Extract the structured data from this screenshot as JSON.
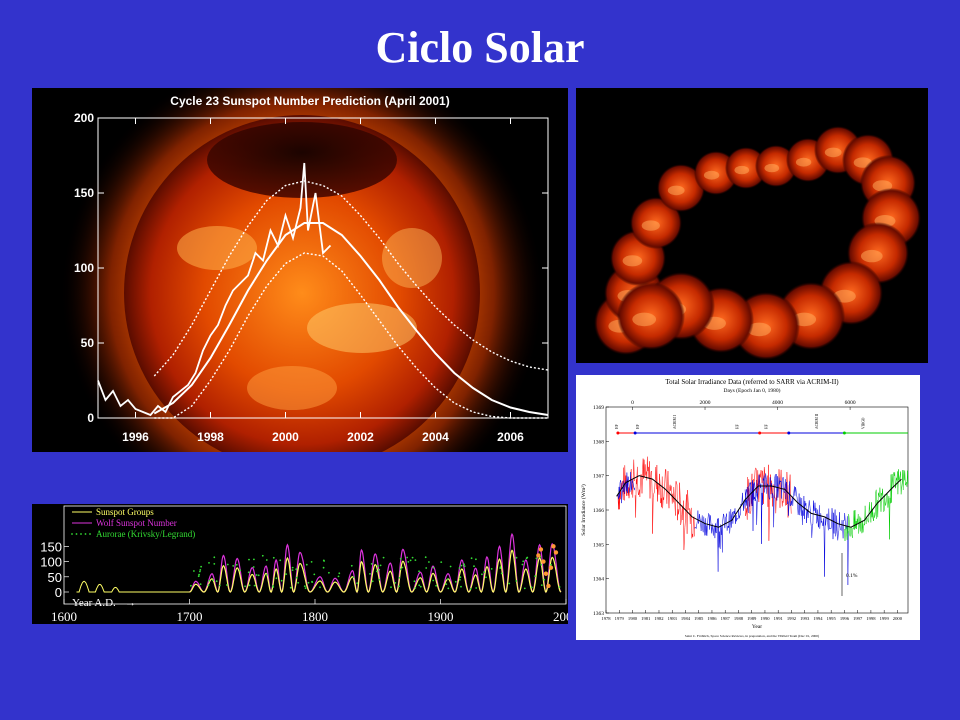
{
  "page": {
    "title": "Ciclo Solar"
  },
  "chart_data": [
    {
      "type": "line",
      "title": "Cycle 23 Sunspot Number Prediction (April 2001)",
      "xlim": [
        1995,
        2007
      ],
      "ylim": [
        0,
        200
      ],
      "x_ticks": [
        "1996",
        "1998",
        "2000",
        "2002",
        "2004",
        "2006"
      ],
      "y_ticks": [
        "0",
        "50",
        "100",
        "150",
        "200"
      ],
      "series": [
        {
          "role": "observed",
          "x": [
            1995.0,
            1995.2,
            1995.4,
            1995.6,
            1995.8,
            1996.0,
            1996.2,
            1996.4,
            1996.6,
            1996.8,
            1997.0,
            1997.2,
            1997.4,
            1997.6,
            1997.8,
            1998.0,
            1998.2,
            1998.4,
            1998.6,
            1998.8,
            1999.0,
            1999.2,
            1999.4,
            1999.6,
            1999.8,
            2000.0,
            2000.2,
            2000.4,
            2000.5,
            2000.6,
            2000.8,
            2001.0,
            2001.2
          ],
          "y": [
            25,
            12,
            18,
            8,
            12,
            6,
            4,
            2,
            8,
            4,
            14,
            18,
            22,
            30,
            45,
            55,
            62,
            75,
            85,
            90,
            95,
            110,
            105,
            125,
            115,
            135,
            120,
            140,
            170,
            125,
            150,
            110,
            115
          ]
        },
        {
          "role": "prediction",
          "x": [
            1996.5,
            1997,
            1997.5,
            1998,
            1998.5,
            1999,
            1999.5,
            2000,
            2000.5,
            2001,
            2001.5,
            2002,
            2002.5,
            2003,
            2003.5,
            2004,
            2004.5,
            2005,
            2005.5,
            2006,
            2006.5,
            2007
          ],
          "y": [
            3,
            10,
            22,
            40,
            62,
            85,
            105,
            122,
            130,
            130,
            122,
            108,
            92,
            74,
            58,
            43,
            30,
            20,
            12,
            7,
            4,
            2
          ]
        },
        {
          "role": "upper-bound",
          "x": [
            1996.5,
            1997,
            1997.5,
            1998,
            1998.5,
            1999,
            1999.5,
            2000,
            2000.5,
            2001,
            2001.5,
            2002,
            2002.5,
            2003,
            2003.5,
            2004,
            2004.5,
            2005,
            2005.5,
            2006,
            2006.5,
            2007
          ],
          "y": [
            28,
            42,
            62,
            85,
            108,
            128,
            145,
            155,
            158,
            155,
            148,
            135,
            120,
            103,
            88,
            74,
            62,
            52,
            44,
            38,
            34,
            32
          ]
        },
        {
          "role": "lower-bound",
          "x": [
            1996.5,
            1997,
            1997.5,
            1998,
            1998.5,
            1999,
            1999.5,
            2000,
            2000.5,
            2001,
            2001.5,
            2002,
            2002.5,
            2003,
            2003.5,
            2004,
            2004.5,
            2005,
            2005.5,
            2006,
            2006.5,
            2007
          ],
          "y": [
            0,
            0,
            8,
            25,
            45,
            68,
            88,
            103,
            110,
            108,
            98,
            82,
            65,
            48,
            33,
            20,
            10,
            4,
            1,
            0,
            0,
            0
          ]
        }
      ]
    },
    {
      "type": "line",
      "title": "Total Solar Irradiance Data (referred to SARR via ACRIM-II)",
      "top_axis_label": "Days (Epoch Jan 0, 1980)",
      "top_ticks": [
        "0",
        "2000",
        "4000",
        "6000"
      ],
      "xlabel": "Year",
      "ylabel": "Solar Irradiance (Wm²)",
      "ylim": [
        1363,
        1369
      ],
      "y_ticks": [
        "1363",
        "1364",
        "1365",
        "1366",
        "1367",
        "1368",
        "1369"
      ],
      "x_ticks": [
        "1978",
        "1979",
        "1980",
        "1981",
        "1982",
        "1983",
        "1984",
        "1985",
        "1986",
        "1987",
        "1988",
        "1989",
        "1990",
        "1991",
        "1992",
        "1993",
        "1994",
        "1995",
        "1996",
        "1997",
        "1998",
        "1999",
        "2000"
      ],
      "instruments": [
        "HF",
        "HF",
        "ACRIM I",
        "HF",
        "HF",
        "ACRIM II",
        "VIRGO"
      ],
      "scale_annotation": "0.1%",
      "credit": "Saint C. Fröhlich, Space Science Reviews, in preparation, and the VIRGO Team (Dec 01, 2000)",
      "colors": {
        "red": "#ff0000",
        "blue": "#0000dd",
        "green": "#00cc00",
        "mean": "#000000"
      },
      "series": [
        {
          "role": "trend",
          "x": [
            1978.8,
            1979.5,
            1980.5,
            1981.5,
            1982.5,
            1983.5,
            1984.5,
            1985.5,
            1986.5,
            1987.5,
            1988.5,
            1989.5,
            1990.5,
            1991.5,
            1992.5,
            1993.5,
            1994.5,
            1995.5,
            1996.5,
            1997.5,
            1998.5,
            1999.5,
            2000.3
          ],
          "y": [
            1366.4,
            1366.8,
            1367.0,
            1366.9,
            1366.6,
            1366.2,
            1365.8,
            1365.6,
            1365.5,
            1365.7,
            1366.3,
            1366.7,
            1366.7,
            1366.6,
            1366.2,
            1365.9,
            1365.8,
            1365.6,
            1365.5,
            1365.7,
            1366.2,
            1366.6,
            1366.9
          ]
        }
      ]
    },
    {
      "type": "line",
      "xlabel": "Year A.D.",
      "xlim": [
        1600,
        2000
      ],
      "ylim": [
        0,
        150
      ],
      "x_ticks": [
        "1600",
        "1700",
        "1800",
        "1900",
        "2000"
      ],
      "y_ticks": [
        "0",
        "50",
        "100",
        "150"
      ],
      "series": [
        {
          "name": "Sunspot Groups",
          "color": "#ffff66"
        },
        {
          "name": "Wolf Sunspot Number",
          "color": "#dd33dd"
        },
        {
          "name": "Aurorae (Krivsky/Legrand)",
          "color": "#33dd33"
        }
      ],
      "cycle_peaks": [
        [
          1705,
          35
        ],
        [
          1718,
          60
        ],
        [
          1727,
          120
        ],
        [
          1738,
          110
        ],
        [
          1750,
          80
        ],
        [
          1761,
          85
        ],
        [
          1769,
          105
        ],
        [
          1778,
          155
        ],
        [
          1788,
          130
        ],
        [
          1804,
          50
        ],
        [
          1816,
          45
        ],
        [
          1830,
          70
        ],
        [
          1837,
          138
        ],
        [
          1848,
          125
        ],
        [
          1860,
          95
        ],
        [
          1870,
          140
        ],
        [
          1884,
          65
        ],
        [
          1894,
          85
        ],
        [
          1906,
          60
        ],
        [
          1917,
          105
        ],
        [
          1928,
          78
        ],
        [
          1937,
          115
        ],
        [
          1947,
          150
        ],
        [
          1957,
          190
        ],
        [
          1968,
          105
        ],
        [
          1979,
          155
        ],
        [
          1989,
          158
        ]
      ]
    }
  ]
}
